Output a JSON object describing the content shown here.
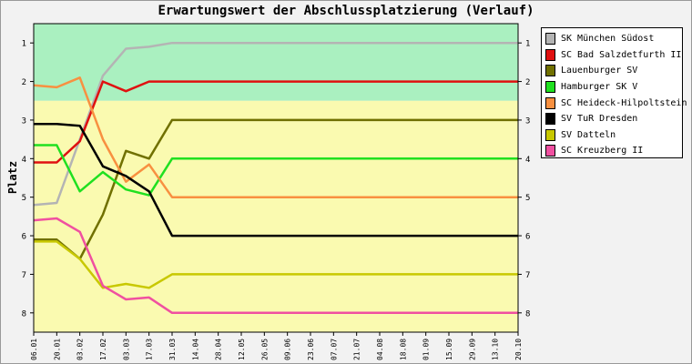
{
  "chart_data": {
    "type": "line",
    "title": "Erwartungswert der Abschlussplatzierung (Verlauf)",
    "ylabel": "Platz",
    "xlabel": "",
    "ylim": [
      0.5,
      8.5
    ],
    "y_inverted": true,
    "yticks": [
      1,
      2,
      3,
      4,
      5,
      6,
      7,
      8
    ],
    "x": [
      "06.01",
      "20.01",
      "03.02",
      "17.02",
      "03.03",
      "17.03",
      "31.03",
      "14.04",
      "28.04",
      "12.05",
      "26.05",
      "09.06",
      "23.06",
      "07.07",
      "21.07",
      "04.08",
      "18.08",
      "01.09",
      "15.09",
      "29.09",
      "13.10",
      "20.10"
    ],
    "bands": [
      {
        "from": 0.5,
        "to": 2.5,
        "color": "#aaf0c0"
      },
      {
        "from": 2.5,
        "to": 8.5,
        "color": "#fafab0"
      }
    ],
    "grid": false,
    "legend_position": "right",
    "series": [
      {
        "name": "SK München Südost",
        "color": "#b4b4b4",
        "values": [
          5.2,
          5.15,
          3.5,
          1.85,
          1.15,
          1.1,
          1.0,
          1.0,
          1.0,
          1.0,
          1.0,
          1.0,
          1.0,
          1.0,
          1.0,
          1.0,
          1.0,
          1.0,
          1.0,
          1.0,
          1.0,
          1.0
        ]
      },
      {
        "name": "SC Bad Salzdetfurth II",
        "color": "#e01010",
        "values": [
          4.1,
          4.1,
          3.55,
          2.0,
          2.25,
          2.0,
          2.0,
          2.0,
          2.0,
          2.0,
          2.0,
          2.0,
          2.0,
          2.0,
          2.0,
          2.0,
          2.0,
          2.0,
          2.0,
          2.0,
          2.0,
          2.0
        ]
      },
      {
        "name": "Lauenburger SV",
        "color": "#707000",
        "values": [
          6.1,
          6.1,
          6.6,
          5.45,
          3.8,
          4.0,
          3.0,
          3.0,
          3.0,
          3.0,
          3.0,
          3.0,
          3.0,
          3.0,
          3.0,
          3.0,
          3.0,
          3.0,
          3.0,
          3.0,
          3.0,
          3.0
        ]
      },
      {
        "name": "Hamburger SK V",
        "color": "#20e020",
        "values": [
          3.65,
          3.65,
          4.85,
          4.35,
          4.8,
          4.95,
          4.0,
          4.0,
          4.0,
          4.0,
          4.0,
          4.0,
          4.0,
          4.0,
          4.0,
          4.0,
          4.0,
          4.0,
          4.0,
          4.0,
          4.0,
          4.0
        ]
      },
      {
        "name": "SC Heideck-Hilpoltstein",
        "color": "#f89040",
        "values": [
          2.1,
          2.15,
          1.9,
          3.5,
          4.6,
          4.15,
          5.0,
          5.0,
          5.0,
          5.0,
          5.0,
          5.0,
          5.0,
          5.0,
          5.0,
          5.0,
          5.0,
          5.0,
          5.0,
          5.0,
          5.0,
          5.0
        ]
      },
      {
        "name": "SV TuR Dresden",
        "color": "#000000",
        "values": [
          3.1,
          3.1,
          3.15,
          4.2,
          4.45,
          4.85,
          6.0,
          6.0,
          6.0,
          6.0,
          6.0,
          6.0,
          6.0,
          6.0,
          6.0,
          6.0,
          6.0,
          6.0,
          6.0,
          6.0,
          6.0,
          6.0
        ]
      },
      {
        "name": "SV Datteln",
        "color": "#c8c800",
        "values": [
          6.15,
          6.15,
          6.6,
          7.35,
          7.25,
          7.35,
          7.0,
          7.0,
          7.0,
          7.0,
          7.0,
          7.0,
          7.0,
          7.0,
          7.0,
          7.0,
          7.0,
          7.0,
          7.0,
          7.0,
          7.0,
          7.0
        ]
      },
      {
        "name": "SC Kreuzberg II",
        "color": "#f050a0",
        "values": [
          5.6,
          5.55,
          5.9,
          7.3,
          7.65,
          7.6,
          8.0,
          8.0,
          8.0,
          8.0,
          8.0,
          8.0,
          8.0,
          8.0,
          8.0,
          8.0,
          8.0,
          8.0,
          8.0,
          8.0,
          8.0,
          8.0
        ]
      }
    ]
  }
}
